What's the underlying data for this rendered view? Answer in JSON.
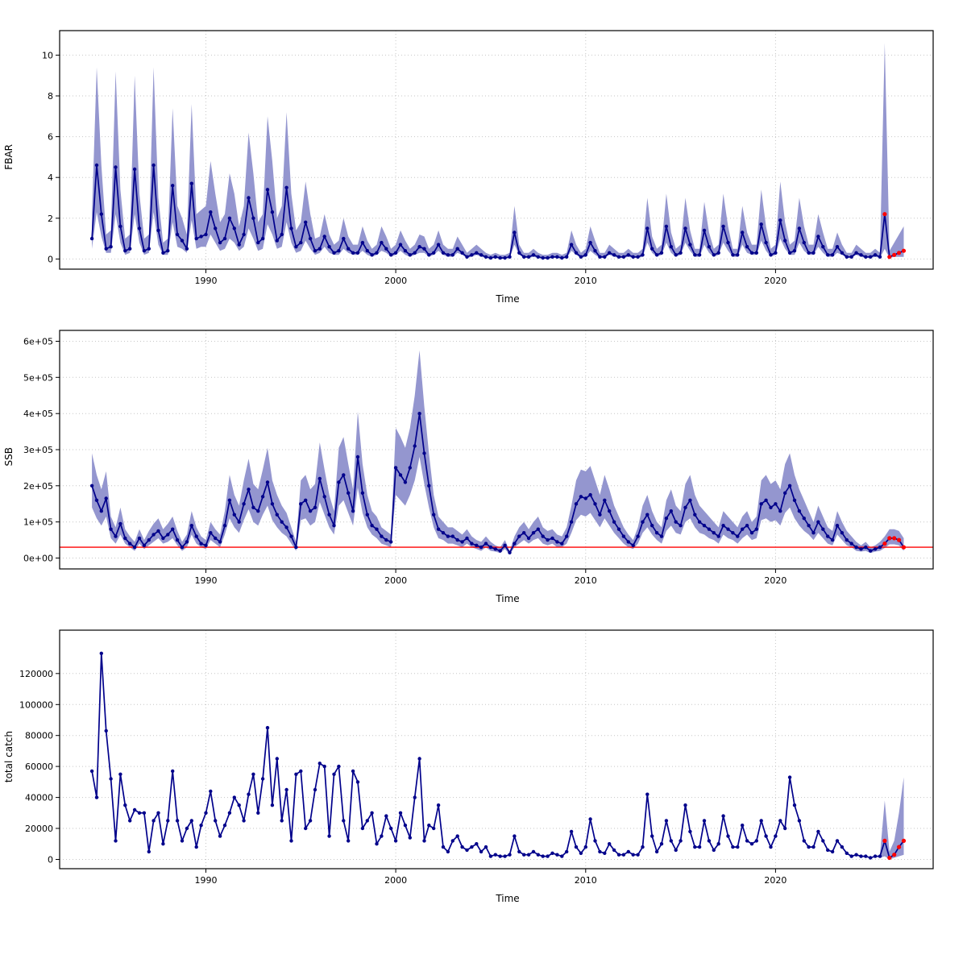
{
  "figure": {
    "panels": [
      {
        "ylabel": "FBAR",
        "xlabel": "Time"
      },
      {
        "ylabel": "SSB",
        "xlabel": "Time"
      },
      {
        "ylabel": "total catch",
        "xlabel": "Time"
      }
    ]
  },
  "colors": {
    "line": "#00008B",
    "band": "#9496CF",
    "forecast": "#FF0000",
    "reference": "#FF0000",
    "grid": "#c6c6c6",
    "box": "#000000"
  },
  "chart_data": [
    {
      "type": "line",
      "ylabel": "FBAR",
      "xlabel": "Time",
      "x_start": 1984,
      "x_step": 0.25,
      "xlim": [
        1982.3,
        2028.3
      ],
      "ylim": [
        -0.5,
        11.2
      ],
      "xticks": [
        1990,
        2000,
        2010,
        2020
      ],
      "xtick_labels": [
        "1990",
        "2000",
        "2010",
        "2020"
      ],
      "yticks": [
        0,
        2,
        4,
        6,
        8,
        10
      ],
      "ytick_labels": [
        "0",
        "2",
        "4",
        "6",
        "8",
        "10"
      ],
      "y_scale": 1,
      "line_color": "#00008B",
      "band_color": "#9496CF",
      "forecast_color": "#FF0000",
      "forecast_start_x": 2025.75,
      "y": [
        1.0,
        4.6,
        2.2,
        0.5,
        0.6,
        4.5,
        1.6,
        0.4,
        0.5,
        4.4,
        1.5,
        0.4,
        0.5,
        4.6,
        1.4,
        0.3,
        0.4,
        3.6,
        1.2,
        0.9,
        0.5,
        3.7,
        1.0,
        1.1,
        1.2,
        2.3,
        1.5,
        0.8,
        1.0,
        2.0,
        1.5,
        0.7,
        1.2,
        3.0,
        2.0,
        0.8,
        1.0,
        3.4,
        2.3,
        0.9,
        1.2,
        3.5,
        1.5,
        0.6,
        0.8,
        1.8,
        1.0,
        0.4,
        0.5,
        1.1,
        0.6,
        0.3,
        0.4,
        1.0,
        0.5,
        0.3,
        0.3,
        0.8,
        0.4,
        0.2,
        0.3,
        0.8,
        0.5,
        0.2,
        0.3,
        0.7,
        0.4,
        0.2,
        0.3,
        0.6,
        0.5,
        0.2,
        0.3,
        0.7,
        0.3,
        0.2,
        0.2,
        0.5,
        0.3,
        0.1,
        0.2,
        0.3,
        0.2,
        0.1,
        0.05,
        0.1,
        0.05,
        0.05,
        0.1,
        1.3,
        0.3,
        0.1,
        0.1,
        0.2,
        0.1,
        0.05,
        0.05,
        0.1,
        0.1,
        0.05,
        0.1,
        0.7,
        0.3,
        0.1,
        0.2,
        0.8,
        0.4,
        0.1,
        0.1,
        0.3,
        0.2,
        0.1,
        0.1,
        0.2,
        0.1,
        0.1,
        0.2,
        1.5,
        0.5,
        0.2,
        0.3,
        1.6,
        0.6,
        0.2,
        0.3,
        1.5,
        0.7,
        0.2,
        0.2,
        1.4,
        0.6,
        0.2,
        0.3,
        1.6,
        0.8,
        0.2,
        0.2,
        1.3,
        0.6,
        0.3,
        0.3,
        1.7,
        0.8,
        0.2,
        0.3,
        1.9,
        0.9,
        0.3,
        0.4,
        1.5,
        0.8,
        0.3,
        0.3,
        1.1,
        0.6,
        0.2,
        0.2,
        0.6,
        0.3,
        0.1,
        0.1,
        0.3,
        0.2,
        0.1,
        0.1,
        0.2,
        0.1,
        2.2,
        0.1,
        0.2,
        0.3,
        0.4
      ],
      "hi": [
        2.2,
        9.4,
        4.6,
        1.2,
        1.4,
        9.2,
        3.4,
        1.0,
        1.2,
        9.0,
        3.2,
        1.0,
        1.2,
        9.4,
        3.0,
        0.8,
        1.0,
        7.4,
        2.6,
        2.0,
        1.2,
        7.6,
        2.2,
        2.4,
        2.6,
        4.8,
        3.2,
        1.8,
        2.2,
        4.2,
        3.2,
        1.6,
        2.6,
        6.2,
        4.2,
        1.8,
        2.2,
        7.0,
        4.8,
        2.0,
        2.6,
        7.2,
        3.2,
        1.4,
        1.8,
        3.8,
        2.2,
        1.0,
        1.1,
        2.2,
        1.2,
        0.7,
        0.9,
        2.0,
        1.1,
        0.7,
        0.7,
        1.6,
        0.9,
        0.5,
        0.7,
        1.6,
        1.1,
        0.5,
        0.7,
        1.4,
        0.9,
        0.5,
        0.7,
        1.2,
        1.1,
        0.5,
        0.7,
        1.4,
        0.7,
        0.5,
        0.5,
        1.1,
        0.7,
        0.3,
        0.5,
        0.7,
        0.5,
        0.3,
        0.2,
        0.3,
        0.2,
        0.2,
        0.3,
        2.6,
        0.7,
        0.3,
        0.3,
        0.5,
        0.3,
        0.2,
        0.2,
        0.3,
        0.3,
        0.2,
        0.3,
        1.4,
        0.7,
        0.3,
        0.5,
        1.6,
        0.9,
        0.3,
        0.3,
        0.7,
        0.5,
        0.3,
        0.3,
        0.5,
        0.3,
        0.3,
        0.5,
        3.0,
        1.1,
        0.5,
        0.7,
        3.2,
        1.3,
        0.5,
        0.7,
        3.0,
        1.4,
        0.5,
        0.5,
        2.8,
        1.3,
        0.5,
        0.7,
        3.2,
        1.6,
        0.5,
        0.5,
        2.6,
        1.3,
        0.7,
        0.7,
        3.4,
        1.6,
        0.5,
        0.7,
        3.8,
        1.8,
        0.7,
        0.9,
        3.0,
        1.6,
        0.7,
        0.7,
        2.2,
        1.3,
        0.5,
        0.5,
        1.3,
        0.7,
        0.3,
        0.3,
        0.7,
        0.5,
        0.3,
        0.3,
        0.5,
        0.3,
        10.6,
        0.4,
        0.8,
        1.2,
        1.6
      ],
      "lo": [
        0.5,
        2.3,
        1.1,
        0.3,
        0.3,
        2.2,
        0.8,
        0.2,
        0.3,
        2.2,
        0.8,
        0.2,
        0.3,
        2.3,
        0.7,
        0.2,
        0.2,
        1.8,
        0.6,
        0.5,
        0.3,
        1.9,
        0.5,
        0.6,
        0.6,
        1.2,
        0.8,
        0.4,
        0.5,
        1.0,
        0.8,
        0.4,
        0.6,
        1.5,
        1.0,
        0.4,
        0.5,
        1.7,
        1.2,
        0.5,
        0.6,
        1.8,
        0.8,
        0.3,
        0.4,
        0.9,
        0.5,
        0.2,
        0.3,
        0.6,
        0.3,
        0.2,
        0.2,
        0.5,
        0.3,
        0.2,
        0.2,
        0.4,
        0.2,
        0.1,
        0.2,
        0.4,
        0.3,
        0.1,
        0.2,
        0.4,
        0.2,
        0.1,
        0.2,
        0.3,
        0.3,
        0.1,
        0.2,
        0.4,
        0.2,
        0.1,
        0.1,
        0.3,
        0.2,
        0.05,
        0.1,
        0.2,
        0.1,
        0.05,
        0.02,
        0.05,
        0.02,
        0.02,
        0.05,
        0.7,
        0.2,
        0.05,
        0.05,
        0.1,
        0.05,
        0.02,
        0.02,
        0.05,
        0.05,
        0.02,
        0.05,
        0.4,
        0.2,
        0.05,
        0.1,
        0.4,
        0.2,
        0.05,
        0.05,
        0.2,
        0.1,
        0.05,
        0.05,
        0.1,
        0.05,
        0.05,
        0.1,
        0.8,
        0.3,
        0.1,
        0.2,
        0.8,
        0.3,
        0.1,
        0.2,
        0.8,
        0.4,
        0.1,
        0.1,
        0.7,
        0.3,
        0.1,
        0.2,
        0.8,
        0.4,
        0.1,
        0.1,
        0.7,
        0.3,
        0.2,
        0.2,
        0.9,
        0.4,
        0.1,
        0.2,
        1.0,
        0.5,
        0.2,
        0.2,
        0.8,
        0.4,
        0.2,
        0.2,
        0.6,
        0.3,
        0.1,
        0.1,
        0.3,
        0.2,
        0.05,
        0.05,
        0.2,
        0.1,
        0.05,
        0.05,
        0.1,
        0.05,
        0.5,
        0.05,
        0.1,
        0.1,
        0.1
      ]
    },
    {
      "type": "line",
      "ylabel": "SSB",
      "xlabel": "Time",
      "x_start": 1984,
      "x_step": 0.25,
      "xlim": [
        1982.3,
        2028.3
      ],
      "ylim": [
        -30000,
        630000
      ],
      "xticks": [
        1990,
        2000,
        2010,
        2020
      ],
      "xtick_labels": [
        "1990",
        "2000",
        "2010",
        "2020"
      ],
      "yticks": [
        0,
        100000,
        200000,
        300000,
        400000,
        500000,
        600000
      ],
      "ytick_labels": [
        "0e+00",
        "1e+05",
        "2e+05",
        "3e+05",
        "4e+05",
        "5e+05",
        "6e+05"
      ],
      "y_scale": 1000,
      "line_color": "#00008B",
      "band_color": "#9496CF",
      "forecast_color": "#FF0000",
      "forecast_start_x": 2025.75,
      "ref_line": {
        "value": 30000,
        "color": "#FF0000"
      },
      "y": [
        200,
        160,
        130,
        165,
        80,
        60,
        95,
        55,
        40,
        30,
        55,
        35,
        50,
        65,
        75,
        55,
        65,
        80,
        50,
        30,
        45,
        90,
        60,
        40,
        35,
        70,
        55,
        45,
        90,
        160,
        120,
        100,
        150,
        190,
        140,
        130,
        170,
        210,
        150,
        120,
        100,
        85,
        60,
        30,
        150,
        160,
        130,
        140,
        220,
        170,
        120,
        90,
        210,
        230,
        180,
        130,
        280,
        180,
        120,
        90,
        80,
        60,
        50,
        45,
        250,
        230,
        210,
        250,
        310,
        400,
        290,
        200,
        120,
        80,
        70,
        60,
        60,
        50,
        45,
        55,
        40,
        35,
        30,
        40,
        30,
        25,
        20,
        35,
        15,
        40,
        60,
        70,
        55,
        70,
        80,
        60,
        50,
        55,
        45,
        40,
        60,
        100,
        150,
        170,
        165,
        175,
        150,
        120,
        160,
        130,
        100,
        80,
        60,
        45,
        35,
        60,
        100,
        120,
        90,
        70,
        60,
        110,
        130,
        100,
        90,
        140,
        160,
        120,
        100,
        90,
        80,
        70,
        60,
        90,
        80,
        70,
        60,
        80,
        90,
        70,
        80,
        150,
        160,
        140,
        150,
        130,
        180,
        200,
        160,
        130,
        110,
        90,
        70,
        100,
        80,
        60,
        50,
        90,
        70,
        50,
        40,
        30,
        25,
        30,
        20,
        25,
        30,
        40,
        55,
        55,
        50,
        30
      ],
      "hi": [
        290,
        230,
        190,
        240,
        115,
        85,
        140,
        80,
        60,
        45,
        80,
        50,
        75,
        95,
        110,
        80,
        95,
        115,
        75,
        45,
        65,
        130,
        85,
        60,
        50,
        100,
        80,
        65,
        130,
        230,
        175,
        145,
        215,
        275,
        205,
        190,
        245,
        305,
        215,
        175,
        145,
        125,
        85,
        45,
        215,
        230,
        190,
        205,
        320,
        245,
        175,
        130,
        305,
        335,
        260,
        190,
        405,
        260,
        175,
        130,
        115,
        85,
        75,
        65,
        360,
        335,
        305,
        360,
        450,
        575,
        420,
        290,
        175,
        115,
        100,
        85,
        85,
        75,
        65,
        80,
        60,
        50,
        45,
        60,
        45,
        35,
        30,
        50,
        20,
        60,
        85,
        100,
        80,
        100,
        115,
        85,
        75,
        80,
        65,
        60,
        85,
        145,
        215,
        245,
        240,
        255,
        215,
        175,
        230,
        190,
        145,
        115,
        85,
        65,
        50,
        85,
        145,
        175,
        130,
        100,
        85,
        160,
        190,
        145,
        130,
        205,
        230,
        175,
        145,
        130,
        115,
        100,
        85,
        130,
        115,
        100,
        85,
        115,
        130,
        100,
        115,
        215,
        230,
        205,
        215,
        190,
        260,
        290,
        230,
        190,
        160,
        130,
        100,
        145,
        115,
        85,
        75,
        130,
        100,
        75,
        60,
        45,
        35,
        45,
        30,
        35,
        45,
        60,
        80,
        80,
        75,
        55
      ],
      "lo": [
        140,
        110,
        90,
        115,
        55,
        40,
        65,
        40,
        30,
        20,
        40,
        25,
        35,
        45,
        55,
        40,
        45,
        55,
        35,
        20,
        30,
        65,
        40,
        30,
        25,
        50,
        40,
        30,
        65,
        110,
        85,
        70,
        105,
        135,
        100,
        90,
        120,
        145,
        105,
        85,
        70,
        60,
        40,
        20,
        105,
        110,
        90,
        100,
        155,
        120,
        85,
        65,
        145,
        160,
        125,
        90,
        195,
        125,
        85,
        65,
        55,
        40,
        35,
        30,
        175,
        160,
        145,
        175,
        215,
        280,
        205,
        140,
        85,
        55,
        50,
        40,
        40,
        35,
        30,
        40,
        30,
        25,
        20,
        30,
        20,
        18,
        14,
        25,
        10,
        30,
        40,
        50,
        40,
        50,
        55,
        40,
        35,
        40,
        30,
        30,
        40,
        70,
        105,
        120,
        115,
        125,
        105,
        85,
        110,
        90,
        70,
        55,
        40,
        30,
        25,
        40,
        70,
        85,
        65,
        50,
        40,
        75,
        90,
        70,
        65,
        100,
        110,
        85,
        70,
        65,
        55,
        50,
        40,
        65,
        55,
        50,
        40,
        55,
        65,
        50,
        55,
        105,
        110,
        100,
        105,
        90,
        125,
        140,
        110,
        90,
        75,
        65,
        50,
        70,
        55,
        40,
        35,
        65,
        50,
        35,
        30,
        20,
        18,
        20,
        14,
        18,
        20,
        28,
        38,
        38,
        35,
        20
      ]
    },
    {
      "type": "line",
      "ylabel": "total catch",
      "xlabel": "Time",
      "x_start": 1984,
      "x_step": 0.25,
      "xlim": [
        1982.3,
        2028.3
      ],
      "ylim": [
        -6000,
        148000
      ],
      "xticks": [
        1990,
        2000,
        2010,
        2020
      ],
      "xtick_labels": [
        "1990",
        "2000",
        "2010",
        "2020"
      ],
      "yticks": [
        0,
        20000,
        40000,
        60000,
        80000,
        100000,
        120000
      ],
      "ytick_labels": [
        "0",
        "20000",
        "40000",
        "60000",
        "80000",
        "100000",
        "120000"
      ],
      "y_scale": 1000,
      "line_color": "#00008B",
      "band_color": "#9496CF",
      "forecast_color": "#FF0000",
      "forecast_start_x": 2025.75,
      "y": [
        57,
        40,
        133,
        83,
        52,
        12,
        55,
        35,
        25,
        32,
        30,
        30,
        5,
        25,
        30,
        10,
        25,
        57,
        25,
        12,
        20,
        25,
        8,
        22,
        30,
        44,
        25,
        15,
        22,
        30,
        40,
        35,
        25,
        42,
        55,
        30,
        52,
        85,
        35,
        65,
        25,
        45,
        12,
        55,
        57,
        20,
        25,
        45,
        62,
        60,
        15,
        55,
        60,
        25,
        12,
        57,
        50,
        20,
        25,
        30,
        10,
        15,
        28,
        20,
        12,
        30,
        22,
        14,
        40,
        65,
        12,
        22,
        20,
        35,
        8,
        5,
        12,
        15,
        8,
        6,
        8,
        10,
        5,
        8,
        2,
        3,
        2,
        2,
        3,
        15,
        5,
        3,
        3,
        5,
        3,
        2,
        2,
        4,
        3,
        2,
        5,
        18,
        8,
        4,
        8,
        26,
        12,
        5,
        4,
        10,
        6,
        3,
        3,
        5,
        3,
        3,
        8,
        42,
        15,
        5,
        10,
        25,
        12,
        6,
        12,
        35,
        18,
        8,
        8,
        25,
        12,
        6,
        10,
        28,
        15,
        8,
        8,
        22,
        12,
        10,
        12,
        25,
        15,
        8,
        15,
        25,
        20,
        53,
        35,
        25,
        12,
        8,
        8,
        18,
        12,
        6,
        5,
        12,
        8,
        4,
        2,
        3,
        2,
        2,
        1,
        2,
        2,
        12,
        1,
        3,
        8,
        12
      ],
      "band": {
        "start_index": 166,
        "lo": [
          1,
          2,
          0,
          1,
          2,
          3
        ],
        "hi": [
          3,
          38,
          5,
          12,
          30,
          53
        ]
      }
    }
  ]
}
